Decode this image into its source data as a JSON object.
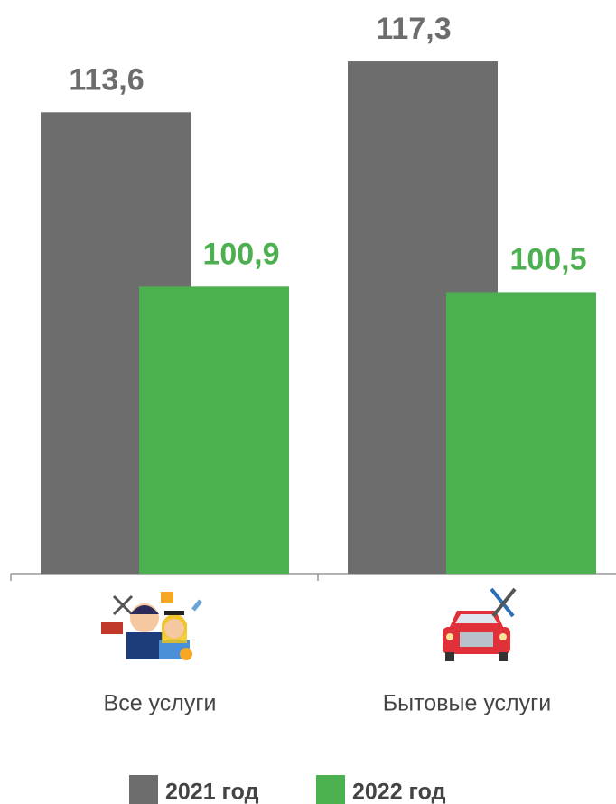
{
  "chart_data": {
    "type": "bar",
    "categories": [
      "Все услуги",
      "Бытовые услуги"
    ],
    "series": [
      {
        "name": "2021 год",
        "color": "#6d6d6d",
        "values": [
          113.6,
          117.3
        ],
        "value_labels": [
          "113,6",
          "117,3"
        ]
      },
      {
        "name": "2022 год",
        "color": "#4caf50",
        "values": [
          100.9,
          100.5
        ],
        "value_labels": [
          "100,9",
          "100,5"
        ]
      }
    ],
    "ylim": [
      80,
      120
    ]
  }
}
